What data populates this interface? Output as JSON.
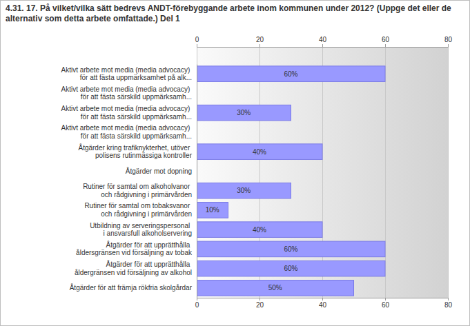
{
  "chart_data": {
    "type": "bar",
    "orientation": "horizontal",
    "title": "4.31. 17. På vilket/vilka sätt bedrevs ANDT-förebyggande arbete inom kommunen under 2012? (Uppge det eller de alternativ som detta arbete omfattade.) Del 1",
    "categories": [
      "Aktivt arbete mot media (media advocacy) för att fästa uppmärksamhet på alk...",
      "Aktivt arbete mot media (media advocacy) för att fästa särskild uppmärksamh...",
      "Aktivt arbete mot media (media advocacy) för att fästa särskild uppmärksamh...",
      "Aktivt arbete mot media (media advocacy) för att fästa särskild uppmärksamh...",
      "Åtgärder kring trafiknykterhet, utöver polisens rutinmässiga kontroller",
      "Åtgärder mot dopning",
      "Rutiner för samtal om alkoholvanor och rådgivning i primärvården",
      "Rutiner för samtal om tobaksvanor och rådgivning i primärvården",
      "Utbildning av serveringspersonal i ansvarsfull alkoholservering",
      "Åtgärder för att upprätthålla åldersgränsen vid försäljning av tobak",
      "Åtgärder för att upprätthålla åldergränsen vid försäljning av alkohol",
      "Åtgärder för att främja rökfria skolgårdar"
    ],
    "values": [
      60,
      0,
      30,
      0,
      40,
      0,
      30,
      10,
      40,
      60,
      60,
      50
    ],
    "value_labels": [
      "60%",
      null,
      "30%",
      null,
      "40%",
      null,
      "30%",
      "10%",
      "40%",
      "60%",
      "60%",
      "50%"
    ],
    "data_labels": true,
    "color": "#9999ff",
    "xlim": [
      0,
      80
    ],
    "xticks": [
      0,
      20,
      40,
      60,
      80
    ],
    "grid": true
  }
}
